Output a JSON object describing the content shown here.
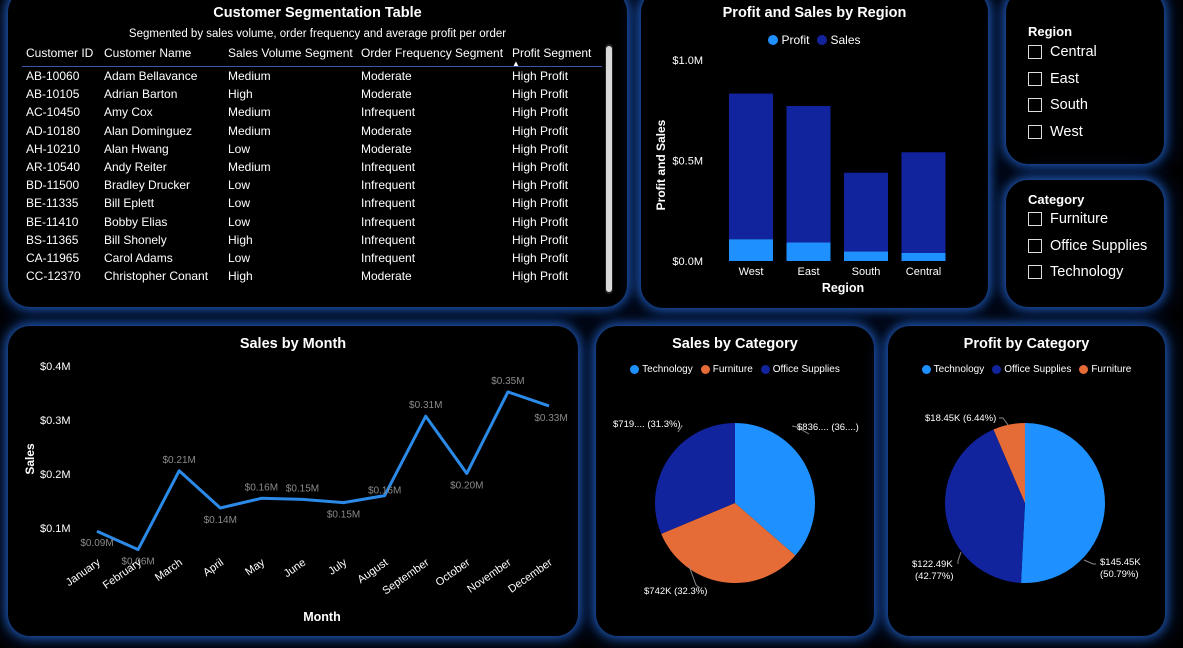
{
  "colors": {
    "profit": "#1e90ff",
    "sales": "#12239e",
    "technology": "#1e90ff",
    "furniture": "#e66c37",
    "office_supplies": "#12239e",
    "line": "#2b8ae8",
    "axis_text": "#ffffff",
    "label_text": "#8a8a8a"
  },
  "table": {
    "title": "Customer Segmentation Table",
    "subtitle": "Segmented by sales volume, order frequency and average profit per order",
    "columns": [
      "Customer ID",
      "Customer Name",
      "Sales Volume Segment",
      "Order Frequency Segment",
      "Profit Segment"
    ],
    "rows": [
      [
        "AB-10060",
        "Adam Bellavance",
        "Medium",
        "Moderate",
        "High Profit"
      ],
      [
        "AB-10105",
        "Adrian Barton",
        "High",
        "Moderate",
        "High Profit"
      ],
      [
        "AC-10450",
        "Amy Cox",
        "Medium",
        "Infrequent",
        "High Profit"
      ],
      [
        "AD-10180",
        "Alan Dominguez",
        "Medium",
        "Moderate",
        "High Profit"
      ],
      [
        "AH-10210",
        "Alan Hwang",
        "Low",
        "Moderate",
        "High Profit"
      ],
      [
        "AR-10540",
        "Andy Reiter",
        "Medium",
        "Infrequent",
        "High Profit"
      ],
      [
        "BD-11500",
        "Bradley Drucker",
        "Low",
        "Infrequent",
        "High Profit"
      ],
      [
        "BE-11335",
        "Bill Eplett",
        "Low",
        "Infrequent",
        "High Profit"
      ],
      [
        "BE-11410",
        "Bobby Elias",
        "Low",
        "Infrequent",
        "High Profit"
      ],
      [
        "BS-11365",
        "Bill Shonely",
        "High",
        "Infrequent",
        "High Profit"
      ],
      [
        "CA-11965",
        "Carol Adams",
        "Low",
        "Infrequent",
        "High Profit"
      ],
      [
        "CC-12370",
        "Christopher Conant",
        "High",
        "Moderate",
        "High Profit"
      ]
    ]
  },
  "slicers": {
    "region": {
      "title": "Region",
      "items": [
        "Central",
        "East",
        "South",
        "West"
      ]
    },
    "category": {
      "title": "Category",
      "items": [
        "Furniture",
        "Office Supplies",
        "Technology"
      ]
    }
  },
  "chart_data": [
    {
      "id": "region",
      "type": "bar",
      "title": "Profit and Sales by Region",
      "xlabel": "Region",
      "ylabel": "Profit and Sales",
      "categories": [
        "West",
        "East",
        "South",
        "Central"
      ],
      "series": [
        {
          "name": "Profit",
          "values": [
            0.108,
            0.092,
            0.047,
            0.04
          ]
        },
        {
          "name": "Sales",
          "values": [
            0.725,
            0.679,
            0.392,
            0.501
          ]
        }
      ],
      "stacked": true,
      "ylim": [
        0,
        1.0
      ],
      "yticks": [
        0,
        0.5,
        1.0
      ],
      "ytick_labels": [
        "$0.0M",
        "$0.5M",
        "$1.0M"
      ],
      "legend": [
        "Profit",
        "Sales"
      ]
    },
    {
      "id": "month",
      "type": "line",
      "title": "Sales by Month",
      "xlabel": "Month",
      "ylabel": "Sales",
      "categories": [
        "January",
        "February",
        "March",
        "April",
        "May",
        "June",
        "July",
        "August",
        "September",
        "October",
        "November",
        "December"
      ],
      "values": [
        0.094,
        0.06,
        0.206,
        0.137,
        0.155,
        0.153,
        0.147,
        0.16,
        0.307,
        0.201,
        0.352,
        0.326
      ],
      "labels": [
        "$0.09M",
        "$0.06M",
        "$0.21M",
        "$0.14M",
        "$0.16M",
        "$0.15M",
        "$0.15M",
        "$0.16M",
        "$0.31M",
        "$0.20M",
        "$0.35M",
        "$0.33M"
      ],
      "ylim": [
        0.05,
        0.4
      ],
      "yticks": [
        0.1,
        0.2,
        0.3,
        0.4
      ],
      "ytick_labels": [
        "$0.1M",
        "$0.2M",
        "$0.3M",
        "$0.4M"
      ]
    },
    {
      "id": "salescat",
      "type": "pie",
      "title": "Sales by Category",
      "legend": [
        "Technology",
        "Furniture",
        "Office Supplies"
      ],
      "slices": [
        {
          "name": "Technology",
          "value": 836,
          "percent": 36.4,
          "label": "$836.... (36....)"
        },
        {
          "name": "Furniture",
          "value": 742,
          "percent": 32.3,
          "label": "$742K (32.3%)"
        },
        {
          "name": "Office Supplies",
          "value": 719,
          "percent": 31.3,
          "label": "$719.... (31.3%)"
        }
      ]
    },
    {
      "id": "profitcat",
      "type": "pie",
      "title": "Profit by Category",
      "legend": [
        "Technology",
        "Office Supplies",
        "Furniture"
      ],
      "slices": [
        {
          "name": "Technology",
          "value": 145.45,
          "percent": 50.79,
          "label": "$145.45K",
          "label2": "(50.79%)"
        },
        {
          "name": "Office Supplies",
          "value": 122.49,
          "percent": 42.77,
          "label": "$122.49K",
          "label2": "(42.77%)"
        },
        {
          "name": "Furniture",
          "value": 18.45,
          "percent": 6.44,
          "label": "$18.45K (6.44%)"
        }
      ]
    }
  ]
}
